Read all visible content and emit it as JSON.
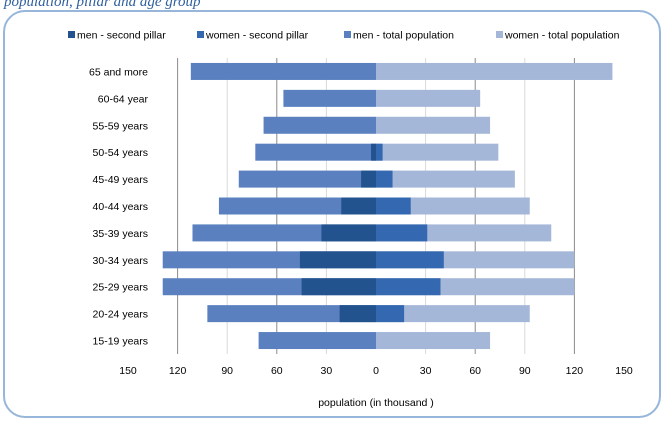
{
  "caption": "population, pillar and age group",
  "chart_data": {
    "type": "bar",
    "orientation": "horizontal",
    "title": "",
    "xlabel": "population (in thousand )",
    "ylabel": "",
    "categories": [
      "65 and more",
      "60-64 year",
      "55-59 years",
      "50-54 years",
      "45-49 years",
      "40-44 years",
      "35-39 years",
      "30-34 years",
      "25-29 years",
      "20-24 years",
      "15-19 years"
    ],
    "xticks": [
      "150",
      "120",
      "90",
      "60",
      "30",
      "0",
      "30",
      "60",
      "90",
      "120",
      "150"
    ],
    "xlim": [
      -150,
      150
    ],
    "grid": true,
    "legend_position": "top",
    "series": [
      {
        "name": "men - second pillar",
        "side": "left",
        "color": "#23538f",
        "values": [
          0,
          0,
          0,
          3,
          9,
          21,
          33,
          46,
          45,
          22,
          0
        ]
      },
      {
        "name": "women - second pillar",
        "side": "right",
        "color": "#3468b0",
        "values": [
          0,
          0,
          0,
          4,
          10,
          21,
          31,
          41,
          39,
          17,
          0
        ]
      },
      {
        "name": "men - total population",
        "side": "left",
        "color": "#5a80c0",
        "values": [
          112,
          56,
          68,
          73,
          83,
          95,
          111,
          129,
          129,
          102,
          71
        ]
      },
      {
        "name": "women - total population",
        "side": "right",
        "color": "#a4b7d8",
        "values": [
          143,
          63,
          69,
          74,
          84,
          93,
          106,
          120,
          120,
          93,
          69
        ]
      }
    ]
  }
}
